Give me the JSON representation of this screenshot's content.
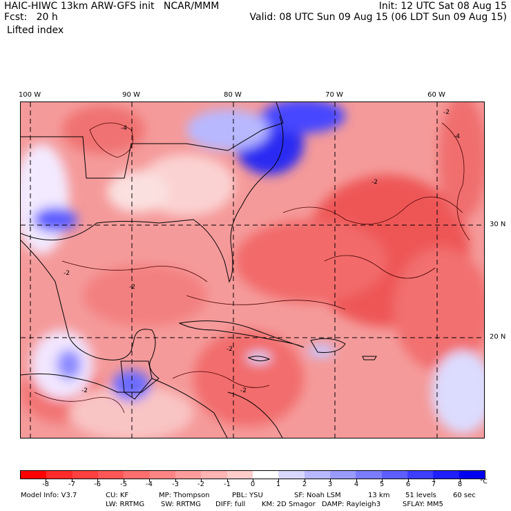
{
  "header": {
    "title": "HAIC-HIWC 13km ARW-GFS init   NCAR/MMM",
    "init": "Init: 12 UTC Sat 08 Aug 15",
    "fcst": "Fcst:   20 h",
    "valid": "Valid: 08 UTC Sun 09 Aug 15 (06 LDT Sun 09 Aug 15)",
    "field": "Lifted index"
  },
  "map": {
    "lon_labels": [
      "100 W",
      "90 W",
      "80 W",
      "70 W",
      "60 W"
    ],
    "lat_labels": [
      "30 N",
      "20 N"
    ],
    "contour_labels": [
      "-4",
      "-2",
      "-2",
      "-2",
      "-2",
      "-2",
      "-2",
      "-4",
      "-2"
    ]
  },
  "colorbar": {
    "ticks": [
      "-8",
      "-7",
      "-6",
      "-5",
      "-4",
      "-3",
      "-2",
      "-1",
      "0",
      "1",
      "2",
      "3",
      "4",
      "5",
      "6",
      "7",
      "8"
    ],
    "unit": "°C",
    "colors": [
      "#ff0000",
      "#ff2a2a",
      "#ff4040",
      "#ff5757",
      "#ff6e6e",
      "#ff8585",
      "#ff9c9c",
      "#ffb3b3",
      "#ffcbcb",
      "#ffffff",
      "#d8d8ff",
      "#b8b8ff",
      "#9a9aff",
      "#7c7cff",
      "#5e5eff",
      "#3e3eff",
      "#2020ff",
      "#0000f0"
    ]
  },
  "footer": {
    "line1": [
      "Model Info: V3.7",
      "CU: KF",
      "MP: Thompson",
      "PBL: YSU",
      "SF: Noah LSM",
      "13 km",
      "51 levels",
      "60 sec"
    ],
    "line2": [
      "LW: RRTMG",
      "SW: RRTMG",
      "DIFF: full",
      "KM: 2D Smagor",
      "DAMP: Rayleigh3",
      "SFLAY: MM5"
    ]
  }
}
